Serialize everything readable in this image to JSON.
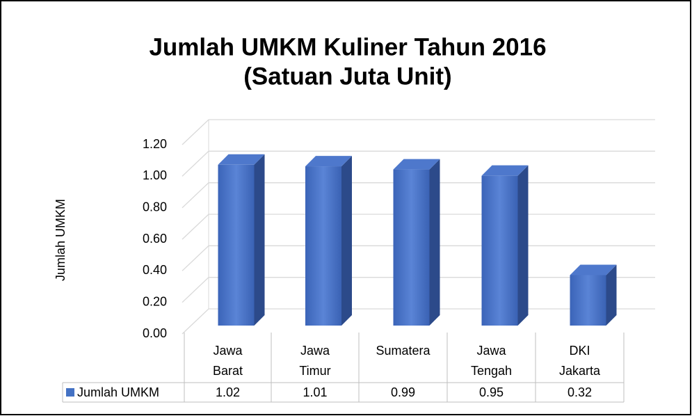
{
  "chart_data": {
    "type": "bar3d",
    "title": "Jumlah UMKM Kuliner Tahun 2016",
    "subtitle": "(Satuan Juta Unit)",
    "y_label": "Jumlah UMKM",
    "categories": [
      "Jawa Barat",
      "Jawa Timur",
      "Sumatera",
      "Jawa Tengah",
      "DKI Jakarta"
    ],
    "series": [
      {
        "name": "Jumlah UMKM",
        "color": "#4472c4",
        "values": [
          1.02,
          1.01,
          0.99,
          0.95,
          0.32
        ]
      }
    ],
    "ylim": [
      0,
      1.2
    ],
    "yticks": [
      {
        "value": 0,
        "label": "0.00"
      },
      {
        "value": 0.2,
        "label": "0.20"
      },
      {
        "value": 0.4,
        "label": "0.40"
      },
      {
        "value": 0.6,
        "label": "0.60"
      },
      {
        "value": 0.8,
        "label": "0.80"
      },
      {
        "value": 1,
        "label": "1.00"
      },
      {
        "value": 1.2,
        "label": "1.20"
      }
    ],
    "grid": true,
    "data_table": true
  }
}
